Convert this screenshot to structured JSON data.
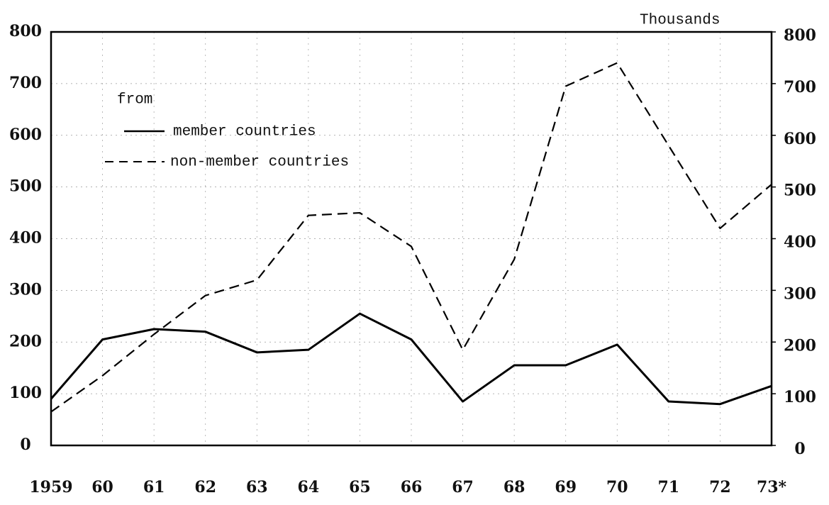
{
  "chart_data": {
    "type": "line",
    "y2_label": "Thousands",
    "legend_title": "from",
    "categories": [
      "1959",
      "60",
      "61",
      "62",
      "63",
      "64",
      "65",
      "66",
      "67",
      "68",
      "69",
      "70",
      "71",
      "72",
      "73*"
    ],
    "series": [
      {
        "name": "member countries",
        "color": "#000000",
        "style": "solid",
        "values": [
          90,
          205,
          225,
          220,
          180,
          185,
          255,
          205,
          85,
          155,
          155,
          195,
          85,
          80,
          115
        ]
      },
      {
        "name": "non-member countries",
        "color": "#000000",
        "style": "dashed",
        "values": [
          65,
          135,
          215,
          290,
          320,
          445,
          450,
          385,
          185,
          360,
          695,
          740,
          580,
          420,
          505
        ]
      }
    ],
    "ylim": [
      0,
      800
    ],
    "yticks": [
      0,
      100,
      200,
      300,
      400,
      500,
      600,
      700,
      800
    ],
    "y2lim": [
      0,
      800
    ],
    "y2ticks": [
      0,
      100,
      200,
      300,
      400,
      500,
      600,
      700,
      800
    ],
    "grid": true
  }
}
